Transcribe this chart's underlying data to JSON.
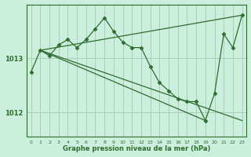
{
  "title": "Graphe pression niveau de la mer (hPa)",
  "bg_color": "#cceedd",
  "grid_color": "#aaccbb",
  "line_color": "#2d6e2d",
  "xlim": [
    -0.5,
    23.5
  ],
  "ylim": [
    1011.55,
    1014.0
  ],
  "yticks": [
    1012,
    1013
  ],
  "xticks": [
    0,
    1,
    2,
    3,
    4,
    5,
    6,
    7,
    8,
    9,
    10,
    11,
    12,
    13,
    14,
    15,
    16,
    17,
    18,
    19,
    20,
    21,
    22,
    23
  ],
  "series": [
    {
      "x": [
        0,
        1,
        2,
        3,
        4,
        5,
        6,
        7,
        8,
        9,
        10,
        11,
        12,
        13,
        14,
        15,
        16,
        17,
        18,
        19,
        20,
        21,
        22,
        23
      ],
      "y": [
        1012.75,
        1013.15,
        1013.05,
        1013.25,
        1013.35,
        1013.2,
        1013.35,
        1013.55,
        1013.75,
        1013.5,
        1013.3,
        1013.2,
        1013.2,
        1012.85,
        1012.55,
        1012.4,
        1012.25,
        1012.2,
        1012.2,
        1011.85,
        1012.35,
        1013.45,
        1013.2,
        1013.8
      ],
      "marker": true
    },
    {
      "x": [
        1,
        23
      ],
      "y": [
        1013.15,
        1013.8
      ],
      "marker": false
    },
    {
      "x": [
        1,
        19
      ],
      "y": [
        1013.15,
        1011.85
      ],
      "marker": false
    },
    {
      "x": [
        1,
        23
      ],
      "y": [
        1013.15,
        1011.85
      ],
      "marker": false
    }
  ]
}
